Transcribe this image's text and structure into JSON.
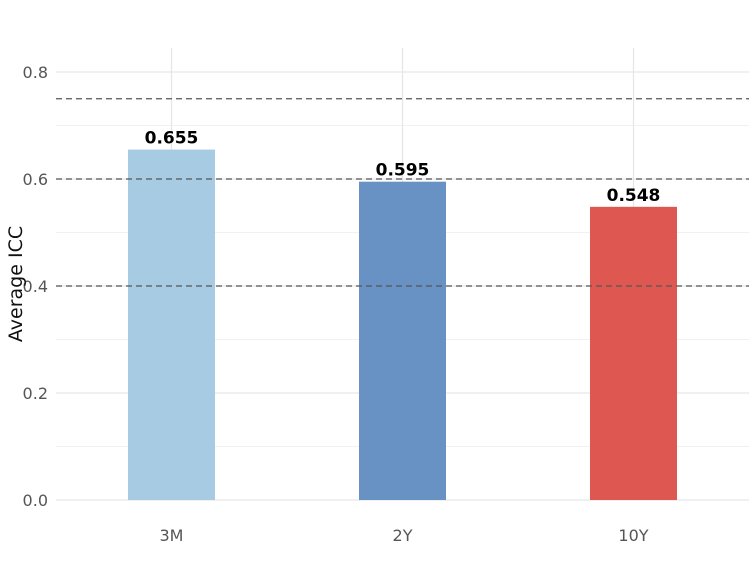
{
  "chart_data": {
    "type": "bar",
    "categories": [
      "3M",
      "2Y",
      "10Y"
    ],
    "values": [
      0.655,
      0.595,
      0.548
    ],
    "value_labels": [
      "0.655",
      "0.595",
      "0.548"
    ],
    "colors": [
      "#a6cbe2",
      "#6892c3",
      "#de5751"
    ],
    "title": "",
    "xlabel": "",
    "ylabel": "Average ICC",
    "ylim": [
      0,
      0.84
    ],
    "yticks": [
      0.0,
      0.2,
      0.4,
      0.6,
      0.8
    ],
    "ytick_labels": [
      "0.0",
      "0.2",
      "0.4",
      "0.6",
      "0.8"
    ],
    "reference_lines": [
      0.75,
      0.6,
      0.4
    ],
    "reference_line_style": "dashed",
    "reference_line_color": "#555555",
    "grid": true,
    "legend": "none"
  }
}
